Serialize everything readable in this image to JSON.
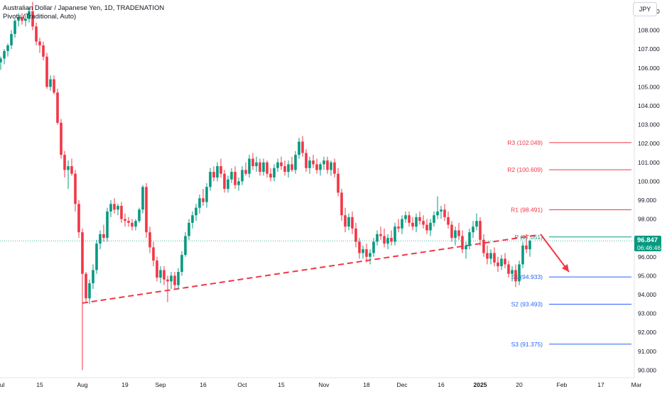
{
  "header": {
    "title": "Australian Dollar / Japanese Yen, 1D, TRADENATION",
    "indicator": "Pivots (Traditional, Auto)",
    "currency": "JPY"
  },
  "price_tag": {
    "value": "96.847",
    "countdown": "06:46:46"
  },
  "colors": {
    "up": "#089981",
    "down": "#f23645",
    "pivot": "#089981",
    "resistance": "#f23645",
    "support": "#2962ff",
    "trendline": "#f23645",
    "arrow": "#f23645"
  },
  "chart_data": {
    "type": "candlestick",
    "y_axis": {
      "min": 89.6,
      "max": 109.6,
      "ticks": [
        "90.000",
        "91.000",
        "92.000",
        "93.000",
        "94.000",
        "95.000",
        "96.000",
        "97.000",
        "98.000",
        "99.000",
        "100.000",
        "101.000",
        "102.000",
        "103.000",
        "104.000",
        "105.000",
        "106.000",
        "107.000",
        "108.000",
        "109.000"
      ],
      "tick_values": [
        90,
        91,
        92,
        93,
        94,
        95,
        96,
        97,
        98,
        99,
        100,
        101,
        102,
        103,
        104,
        105,
        106,
        107,
        108,
        109
      ]
    },
    "x_axis": {
      "labels": [
        "Jul",
        "15",
        "Aug",
        "19",
        "Sep",
        "16",
        "Oct",
        "15",
        "Nov",
        "18",
        "Dec",
        "16",
        "2025",
        "20",
        "Feb",
        "17",
        "Mar"
      ],
      "bold_label": "2025",
      "last_candle_index": 164,
      "label_positions": [
        0,
        11,
        23,
        35,
        45,
        57,
        68,
        79,
        91,
        103,
        113,
        124,
        135,
        146,
        158,
        169,
        179
      ]
    },
    "candles": [
      [
        106.3,
        106.6,
        105.9,
        106.5
      ],
      [
        106.5,
        107.0,
        106.2,
        106.9
      ],
      [
        106.9,
        107.3,
        106.6,
        107.2
      ],
      [
        107.2,
        108.0,
        107.0,
        107.8
      ],
      [
        107.8,
        108.6,
        107.6,
        108.5
      ],
      [
        108.5,
        108.9,
        108.2,
        108.7
      ],
      [
        108.7,
        108.9,
        108.3,
        108.5
      ],
      [
        108.5,
        108.8,
        108.2,
        108.6
      ],
      [
        108.6,
        109.2,
        108.4,
        109.0
      ],
      [
        109.0,
        109.5,
        108.0,
        108.2
      ],
      [
        108.2,
        108.4,
        107.2,
        107.4
      ],
      [
        107.4,
        107.6,
        106.8,
        107.2
      ],
      [
        107.2,
        107.4,
        106.4,
        106.6
      ],
      [
        106.6,
        106.8,
        104.9,
        105.0
      ],
      [
        105.0,
        105.6,
        104.8,
        105.4
      ],
      [
        105.4,
        105.6,
        104.6,
        104.7
      ],
      [
        104.7,
        104.9,
        103.0,
        103.1
      ],
      [
        103.1,
        103.3,
        101.2,
        101.4
      ],
      [
        101.4,
        101.6,
        100.2,
        100.6
      ],
      [
        100.6,
        101.1,
        99.6,
        100.8
      ],
      [
        100.8,
        101.2,
        100.3,
        100.4
      ],
      [
        100.4,
        100.6,
        98.4,
        98.8
      ],
      [
        98.8,
        99.0,
        97.0,
        97.3
      ],
      [
        97.3,
        97.5,
        90.0,
        95.1
      ],
      [
        95.1,
        95.2,
        93.6,
        93.8
      ],
      [
        93.8,
        94.8,
        93.5,
        94.6
      ],
      [
        94.6,
        95.6,
        94.3,
        95.3
      ],
      [
        95.3,
        96.9,
        95.1,
        96.7
      ],
      [
        96.7,
        97.4,
        96.4,
        97.2
      ],
      [
        97.2,
        97.7,
        96.8,
        97.0
      ],
      [
        97.0,
        98.6,
        96.8,
        98.4
      ],
      [
        98.4,
        99.0,
        98.1,
        98.8
      ],
      [
        98.8,
        99.1,
        98.3,
        98.5
      ],
      [
        98.5,
        98.8,
        98.2,
        98.7
      ],
      [
        98.7,
        98.9,
        97.8,
        98.0
      ],
      [
        98.0,
        98.3,
        97.6,
        97.9
      ],
      [
        97.9,
        98.1,
        97.6,
        97.8
      ],
      [
        97.8,
        98.0,
        97.4,
        97.6
      ],
      [
        97.6,
        98.0,
        97.4,
        97.9
      ],
      [
        97.9,
        98.6,
        97.8,
        98.5
      ],
      [
        98.5,
        99.8,
        98.3,
        99.7
      ],
      [
        99.7,
        99.9,
        97.0,
        97.3
      ],
      [
        97.3,
        97.6,
        96.2,
        96.5
      ],
      [
        96.5,
        96.8,
        95.5,
        95.8
      ],
      [
        95.8,
        96.0,
        94.7,
        94.9
      ],
      [
        94.9,
        95.5,
        94.6,
        95.3
      ],
      [
        95.3,
        95.5,
        94.5,
        94.8
      ],
      [
        94.8,
        95.0,
        93.6,
        94.7
      ],
      [
        94.7,
        95.2,
        94.3,
        95.0
      ],
      [
        95.0,
        95.2,
        94.3,
        94.5
      ],
      [
        94.5,
        95.4,
        94.3,
        95.2
      ],
      [
        95.2,
        96.3,
        95.0,
        96.1
      ],
      [
        96.1,
        97.3,
        96.0,
        97.1
      ],
      [
        97.1,
        98.0,
        96.9,
        97.8
      ],
      [
        97.8,
        98.4,
        97.5,
        98.2
      ],
      [
        98.2,
        98.8,
        97.9,
        98.6
      ],
      [
        98.6,
        99.3,
        98.3,
        99.1
      ],
      [
        99.1,
        99.6,
        98.7,
        98.9
      ],
      [
        98.9,
        99.9,
        98.6,
        99.7
      ],
      [
        99.7,
        100.7,
        99.5,
        100.5
      ],
      [
        100.5,
        100.8,
        100.0,
        100.2
      ],
      [
        100.2,
        101.0,
        100.0,
        100.8
      ],
      [
        100.8,
        101.2,
        100.2,
        100.4
      ],
      [
        100.4,
        100.6,
        99.4,
        99.6
      ],
      [
        99.6,
        100.3,
        99.4,
        100.1
      ],
      [
        100.1,
        100.7,
        99.9,
        100.5
      ],
      [
        100.5,
        100.8,
        99.6,
        99.8
      ],
      [
        99.8,
        100.2,
        99.5,
        100.0
      ],
      [
        100.0,
        100.8,
        99.8,
        100.6
      ],
      [
        100.6,
        101.0,
        100.3,
        100.4
      ],
      [
        100.4,
        101.4,
        100.2,
        101.2
      ],
      [
        101.2,
        101.5,
        100.6,
        100.8
      ],
      [
        100.8,
        101.3,
        100.5,
        101.0
      ],
      [
        101.0,
        101.2,
        100.3,
        100.5
      ],
      [
        100.5,
        101.2,
        100.3,
        101.0
      ],
      [
        101.0,
        101.1,
        100.2,
        100.4
      ],
      [
        100.4,
        100.7,
        100.0,
        100.2
      ],
      [
        100.2,
        100.9,
        100.0,
        100.7
      ],
      [
        100.7,
        101.2,
        100.5,
        101.0
      ],
      [
        101.0,
        101.3,
        100.6,
        100.8
      ],
      [
        100.8,
        101.1,
        100.3,
        100.5
      ],
      [
        100.5,
        101.1,
        100.2,
        100.9
      ],
      [
        100.9,
        101.3,
        100.5,
        100.6
      ],
      [
        100.6,
        101.6,
        100.4,
        101.4
      ],
      [
        101.4,
        102.3,
        101.2,
        102.1
      ],
      [
        102.1,
        102.4,
        101.3,
        101.5
      ],
      [
        101.5,
        101.7,
        100.5,
        100.7
      ],
      [
        100.7,
        101.3,
        100.4,
        101.1
      ],
      [
        101.1,
        101.4,
        100.7,
        100.9
      ],
      [
        100.9,
        101.2,
        100.4,
        100.6
      ],
      [
        100.6,
        101.0,
        100.3,
        100.9
      ],
      [
        100.9,
        101.3,
        100.6,
        101.1
      ],
      [
        101.1,
        101.3,
        100.4,
        100.6
      ],
      [
        100.6,
        101.1,
        100.3,
        101.0
      ],
      [
        101.0,
        101.2,
        100.2,
        100.4
      ],
      [
        100.4,
        100.7,
        99.2,
        99.4
      ],
      [
        99.4,
        99.6,
        97.9,
        98.2
      ],
      [
        98.2,
        98.6,
        97.3,
        97.6
      ],
      [
        97.6,
        98.3,
        97.4,
        98.1
      ],
      [
        98.1,
        98.4,
        97.2,
        97.5
      ],
      [
        97.5,
        97.8,
        96.5,
        96.8
      ],
      [
        96.8,
        97.0,
        95.9,
        96.2
      ],
      [
        96.2,
        96.6,
        95.9,
        96.4
      ],
      [
        96.4,
        96.7,
        95.7,
        96.0
      ],
      [
        96.0,
        96.4,
        95.6,
        96.2
      ],
      [
        96.2,
        97.0,
        96.0,
        96.8
      ],
      [
        96.8,
        97.4,
        96.6,
        97.2
      ],
      [
        97.2,
        97.6,
        96.9,
        97.1
      ],
      [
        97.1,
        97.5,
        96.5,
        96.7
      ],
      [
        96.7,
        97.2,
        96.4,
        97.0
      ],
      [
        97.0,
        97.4,
        96.6,
        96.8
      ],
      [
        96.8,
        97.8,
        96.6,
        97.6
      ],
      [
        97.6,
        98.0,
        97.3,
        97.5
      ],
      [
        97.5,
        98.2,
        97.2,
        98.0
      ],
      [
        98.0,
        98.4,
        97.8,
        98.2
      ],
      [
        98.2,
        98.4,
        97.6,
        97.8
      ],
      [
        97.8,
        98.1,
        97.4,
        97.6
      ],
      [
        97.6,
        98.3,
        97.3,
        98.1
      ],
      [
        98.1,
        98.4,
        97.7,
        97.9
      ],
      [
        97.9,
        98.2,
        97.5,
        97.7
      ],
      [
        97.7,
        98.0,
        97.2,
        97.4
      ],
      [
        97.4,
        98.0,
        97.1,
        97.8
      ],
      [
        97.8,
        98.4,
        97.6,
        98.2
      ],
      [
        98.2,
        99.2,
        98.0,
        98.4
      ],
      [
        98.4,
        98.7,
        98.0,
        98.5
      ],
      [
        98.5,
        98.8,
        97.9,
        98.1
      ],
      [
        98.1,
        98.4,
        97.5,
        97.7
      ],
      [
        97.7,
        97.9,
        96.8,
        97.0
      ],
      [
        97.0,
        97.6,
        96.6,
        97.4
      ],
      [
        97.4,
        97.8,
        96.9,
        97.1
      ],
      [
        97.1,
        97.4,
        96.2,
        96.4
      ],
      [
        96.4,
        96.8,
        95.9,
        96.6
      ],
      [
        96.6,
        97.5,
        96.4,
        97.3
      ],
      [
        97.3,
        97.9,
        97.0,
        97.6
      ],
      [
        97.6,
        98.3,
        97.4,
        97.9
      ],
      [
        97.9,
        98.1,
        96.6,
        96.9
      ],
      [
        96.9,
        97.2,
        96.0,
        96.2
      ],
      [
        96.2,
        96.6,
        95.6,
        95.9
      ],
      [
        95.9,
        96.4,
        95.6,
        96.2
      ],
      [
        96.2,
        96.5,
        95.5,
        95.7
      ],
      [
        95.7,
        96.0,
        95.2,
        95.5
      ],
      [
        95.5,
        96.1,
        95.3,
        95.9
      ],
      [
        95.9,
        96.2,
        95.4,
        95.6
      ],
      [
        95.6,
        95.8,
        94.9,
        95.1
      ],
      [
        95.1,
        95.5,
        94.7,
        95.3
      ],
      [
        95.3,
        95.6,
        94.4,
        94.7
      ],
      [
        94.7,
        95.8,
        94.5,
        95.6
      ],
      [
        95.6,
        96.8,
        95.4,
        96.6
      ],
      [
        96.6,
        97.2,
        96.2,
        96.4
      ],
      [
        96.4,
        96.9,
        96.0,
        96.847
      ]
    ],
    "pivots": [
      {
        "label": "R3 (102.049)",
        "value": 102.049,
        "kind": "resistance"
      },
      {
        "label": "R2 (100.609)",
        "value": 100.609,
        "kind": "resistance"
      },
      {
        "label": "R1 (98.491)",
        "value": 98.491,
        "kind": "resistance"
      },
      {
        "label": "P (97.051)",
        "value": 97.051,
        "kind": "pivot"
      },
      {
        "label": "S1 (94.933)",
        "value": 94.933,
        "kind": "support"
      },
      {
        "label": "S2 (93.493)",
        "value": 93.493,
        "kind": "support"
      },
      {
        "label": "S3 (91.375)",
        "value": 91.375,
        "kind": "support"
      }
    ],
    "current_price": 96.847,
    "trendline": {
      "from": {
        "index": 23,
        "value": 93.55
      },
      "to": {
        "index": 151,
        "value": 97.15
      }
    },
    "arrow": {
      "from": {
        "index": 152,
        "value": 97.2
      },
      "to": {
        "index": 160,
        "value": 95.2
      }
    }
  }
}
